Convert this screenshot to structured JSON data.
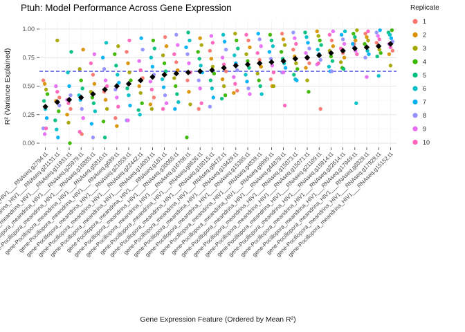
{
  "title": "Ptuh: Model Performance Across Gene Expression",
  "axes": {
    "x_title": "Gene Expression Feature (Ordered by Mean R²)",
    "y_title": "R² (Variance Explained)",
    "y_ticks": [
      "0.00",
      "0.25",
      "0.50",
      "0.75",
      "1.00"
    ]
  },
  "legend": {
    "title": "Replicate",
    "items": [
      {
        "label": "1",
        "color": "#F8766D"
      },
      {
        "label": "2",
        "color": "#D89000"
      },
      {
        "label": "3",
        "color": "#A3A500"
      },
      {
        "label": "4",
        "color": "#39B600"
      },
      {
        "label": "5",
        "color": "#00BF7D"
      },
      {
        "label": "6",
        "color": "#00BFC4"
      },
      {
        "label": "7",
        "color": "#00B0F6"
      },
      {
        "label": "8",
        "color": "#9590FF"
      },
      {
        "label": "9",
        "color": "#E76BF3"
      },
      {
        "label": "10",
        "color": "#FF62BC"
      }
    ]
  },
  "chart_data": {
    "type": "scatter",
    "title": "Ptuh: Model Performance Across Gene Expression",
    "xlabel": "Gene Expression Feature (Ordered by Mean R²)",
    "ylabel": "R² (Variance Explained)",
    "ylim": [
      0,
      1
    ],
    "grid": true,
    "legend_position": "right",
    "threshold": {
      "value": 0.63,
      "style": "dashed",
      "color": "#2B2BE0"
    },
    "mean_marker": {
      "shape": "diamond",
      "color": "#000000",
      "meaning": "mean R² per feature"
    },
    "x_prefix": "gene-Pocillopora_meandrina_HIV1___",
    "features": [
      {
        "name": "RNAseq.g2794.t1",
        "mean": 0.32,
        "replicate_values": [
          0.55,
          0.52,
          0.47,
          0.43,
          0.37,
          0.3,
          0.22,
          0.13,
          0.08,
          0.13
        ]
      },
      {
        "name": "RNAseq.g21131.t1",
        "mean": 0.36,
        "replicate_values": [
          0.4,
          0.37,
          0.9,
          0.28,
          0.2,
          0.12,
          0.05,
          0.33,
          0.5,
          0.45
        ]
      },
      {
        "name": "RNAseq.g11931.t1",
        "mean": 0.38,
        "replicate_values": [
          0.3,
          0.25,
          0.18,
          0.0,
          0.8,
          0.62,
          0.5,
          0.42,
          0.38,
          0.35
        ]
      },
      {
        "name": "RNAseq.g25979.t1",
        "mean": 0.4,
        "replicate_values": [
          0.08,
          0.82,
          0.65,
          0.55,
          0.48,
          0.42,
          0.38,
          0.3,
          0.22,
          0.1
        ]
      },
      {
        "name": "RNAseq.g16885.t1",
        "mean": 0.43,
        "replicate_values": [
          0.6,
          0.52,
          0.45,
          0.4,
          0.35,
          0.28,
          0.17,
          0.05,
          0.78,
          0.7
        ]
      },
      {
        "name": "RNAseq.g5810.t1",
        "mean": 0.47,
        "replicate_values": [
          0.45,
          0.38,
          0.3,
          0.19,
          0.05,
          0.88,
          0.75,
          0.65,
          0.55,
          0.5
        ]
      },
      {
        "name": "RNAseq.g689.t1",
        "mean": 0.5,
        "replicate_values": [
          0.22,
          0.15,
          0.85,
          0.78,
          0.68,
          0.6,
          0.53,
          0.47,
          0.4,
          0.32
        ]
      },
      {
        "name": "RNAseq.g21059.t1",
        "mean": 0.52,
        "replicate_values": [
          0.8,
          0.7,
          0.62,
          0.55,
          0.48,
          0.42,
          0.33,
          0.2,
          0.2,
          0.9
        ]
      },
      {
        "name": "RNAseq.g22442.t1",
        "mean": 0.55,
        "replicate_values": [
          0.57,
          0.5,
          0.44,
          0.35,
          0.29,
          0.25,
          0.92,
          0.82,
          0.72,
          0.64
        ]
      },
      {
        "name": "RNAseq.g14003.t1",
        "mean": 0.58,
        "replicate_values": [
          0.4,
          0.34,
          0.3,
          0.9,
          0.83,
          0.75,
          0.67,
          0.6,
          0.54,
          0.47
        ]
      },
      {
        "name": "RNAseq.g181.t1",
        "mean": 0.6,
        "replicate_values": [
          0.93,
          0.85,
          0.77,
          0.7,
          0.63,
          0.56,
          0.49,
          0.42,
          0.35,
          0.3
        ]
      },
      {
        "name": "RNAseq.g30068.t1",
        "mean": 0.61,
        "replicate_values": [
          0.71,
          0.64,
          0.57,
          0.5,
          0.43,
          0.36,
          0.3,
          0.95,
          0.86,
          0.78
        ]
      },
      {
        "name": "RNAseq.g16708.t1",
        "mean": 0.62,
        "replicate_values": [
          0.55,
          0.45,
          0.34,
          0.05,
          0.97,
          0.9,
          0.84,
          0.78,
          0.7,
          0.62
        ]
      },
      {
        "name": "RNAseq.g8626.t1",
        "mean": 0.63,
        "replicate_values": [
          0.3,
          0.92,
          0.86,
          0.8,
          0.74,
          0.68,
          0.62,
          0.55,
          0.48,
          0.35
        ]
      },
      {
        "name": "RNAseq.g18015.t1",
        "mean": 0.64,
        "replicate_values": [
          0.81,
          0.74,
          0.67,
          0.61,
          0.55,
          0.48,
          0.4,
          0.32,
          0.94,
          0.88
        ]
      },
      {
        "name": "RNAseq.g9472.t1",
        "mean": 0.66,
        "replicate_values": [
          0.63,
          0.56,
          0.5,
          0.42,
          0.39,
          0.95,
          0.89,
          0.82,
          0.75,
          0.69
        ]
      },
      {
        "name": "RNAseq.g19429.t1",
        "mean": 0.68,
        "replicate_values": [
          0.46,
          0.44,
          0.96,
          0.9,
          0.83,
          0.77,
          0.7,
          0.64,
          0.58,
          0.52
        ]
      },
      {
        "name": "RNAseq.g15385.t1",
        "mean": 0.69,
        "replicate_values": [
          0.9,
          0.84,
          0.78,
          0.72,
          0.66,
          0.6,
          0.54,
          0.48,
          0.43,
          0.95
        ]
      },
      {
        "name": "RNAseq.g4839.t1",
        "mean": 0.7,
        "replicate_values": [
          0.73,
          0.67,
          0.61,
          0.55,
          0.5,
          0.43,
          0.96,
          0.91,
          0.85,
          0.79
        ]
      },
      {
        "name": "RNAseq.g9995.t1",
        "mean": 0.71,
        "replicate_values": [
          0.56,
          0.5,
          0.5,
          0.95,
          0.9,
          0.85,
          0.8,
          0.74,
          0.68,
          0.62
        ]
      },
      {
        "name": "RNAseq.g44878.t1",
        "mean": 0.72,
        "replicate_values": [
          0.96,
          0.91,
          0.86,
          0.8,
          0.74,
          0.7,
          0.66,
          0.62,
          0.62,
          0.33
        ]
      },
      {
        "name": "RNAseq.g15073.t1",
        "mean": 0.74,
        "replicate_values": [
          0.82,
          0.76,
          0.7,
          0.65,
          0.6,
          0.56,
          0.55,
          0.97,
          0.92,
          0.87
        ]
      },
      {
        "name": "RNAseq.g15071.t1",
        "mean": 0.75,
        "replicate_values": [
          0.7,
          0.66,
          0.55,
          0.45,
          0.97,
          0.93,
          0.88,
          0.83,
          0.79,
          0.74
        ]
      },
      {
        "name": "RNAseq.g21109.t1",
        "mean": 0.77,
        "replicate_values": [
          0.3,
          0.98,
          0.94,
          0.9,
          0.86,
          0.82,
          0.78,
          0.73,
          0.69,
          0.7
        ]
      },
      {
        "name": "RNAseq.g15914.t1",
        "mean": 0.79,
        "replicate_values": [
          0.9,
          0.85,
          0.81,
          0.76,
          0.72,
          0.67,
          0.63,
          0.63,
          0.98,
          0.95
        ]
      },
      {
        "name": "RNAseq.g22614.t1",
        "mean": 0.81,
        "replicate_values": [
          0.79,
          0.75,
          0.71,
          0.66,
          0.65,
          0.98,
          0.95,
          0.91,
          0.87,
          0.83
        ]
      },
      {
        "name": "RNAseq.g17949.t1",
        "mean": 0.83,
        "replicate_values": [
          0.87,
          0.9,
          0.99,
          0.96,
          0.93,
          0.35,
          0.87,
          0.84,
          0.81,
          0.78
        ]
      },
      {
        "name": "RNAseq.g8829.t1",
        "mean": 0.84,
        "replicate_values": [
          0.96,
          0.93,
          0.9,
          0.87,
          0.84,
          0.81,
          0.78,
          0.75,
          0.58,
          0.98
        ]
      },
      {
        "name": "RNAseq.g17929.t1",
        "mean": 0.85,
        "replicate_values": [
          0.88,
          0.85,
          0.82,
          0.79,
          0.76,
          0.59,
          0.99,
          0.97,
          0.94,
          0.91
        ]
      },
      {
        "name": "RNAseq.g15152.t1",
        "mean": 0.87,
        "replicate_values": [
          0.81,
          0.78,
          0.68,
          0.99,
          0.97,
          0.95,
          0.92,
          0.89,
          0.87,
          0.84
        ]
      }
    ]
  }
}
